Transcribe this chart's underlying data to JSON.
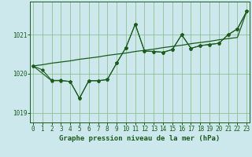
{
  "background_color": "#cce8ec",
  "grid_color": "#88bb88",
  "line_color": "#1a5c1a",
  "title": "Graphe pression niveau de la mer (hPa)",
  "ylabel_ticks": [
    1019,
    1020,
    1021
  ],
  "xlim": [
    -0.3,
    23.3
  ],
  "ylim": [
    1018.75,
    1021.85
  ],
  "x_ticks": [
    0,
    1,
    2,
    3,
    4,
    5,
    6,
    7,
    8,
    9,
    10,
    11,
    12,
    13,
    14,
    15,
    16,
    17,
    18,
    19,
    20,
    21,
    22,
    23
  ],
  "line1_x": [
    0,
    1,
    2,
    3,
    4,
    5,
    6,
    7,
    8,
    9,
    10,
    11,
    12,
    13,
    14,
    15,
    16,
    17,
    18,
    19,
    20,
    21,
    22,
    23
  ],
  "line1_y": [
    1020.2,
    1020.23,
    1020.27,
    1020.3,
    1020.33,
    1020.37,
    1020.4,
    1020.43,
    1020.47,
    1020.5,
    1020.53,
    1020.57,
    1020.6,
    1020.63,
    1020.67,
    1020.7,
    1020.73,
    1020.77,
    1020.8,
    1020.83,
    1020.87,
    1020.9,
    1020.93,
    1021.6
  ],
  "line2_x": [
    0,
    2,
    3,
    4,
    5,
    6,
    7,
    8,
    9,
    10,
    11,
    12,
    13,
    14,
    15,
    16,
    17,
    18,
    19,
    20,
    21,
    22,
    23
  ],
  "line2_y": [
    1020.2,
    1019.82,
    1019.82,
    1019.8,
    1019.37,
    1019.82,
    1019.82,
    1019.85,
    1020.27,
    1020.67,
    1021.27,
    1020.58,
    1020.57,
    1020.55,
    1020.62,
    1021.0,
    1020.65,
    1020.72,
    1020.75,
    1020.78,
    1021.0,
    1021.15,
    1021.6
  ],
  "line3_x": [
    0,
    1,
    2,
    3,
    4,
    5,
    6,
    7,
    8,
    9,
    10,
    11,
    12,
    13,
    14,
    15,
    16,
    17,
    18,
    19,
    20,
    21,
    22,
    23
  ],
  "line3_y": [
    1020.2,
    1020.1,
    1019.83,
    1019.83,
    1019.8,
    1019.37,
    1019.82,
    1019.82,
    1019.85,
    1020.27,
    1020.67,
    1021.27,
    1020.58,
    1020.57,
    1020.55,
    1020.62,
    1021.0,
    1020.65,
    1020.72,
    1020.75,
    1020.78,
    1021.0,
    1021.15,
    1021.6
  ]
}
